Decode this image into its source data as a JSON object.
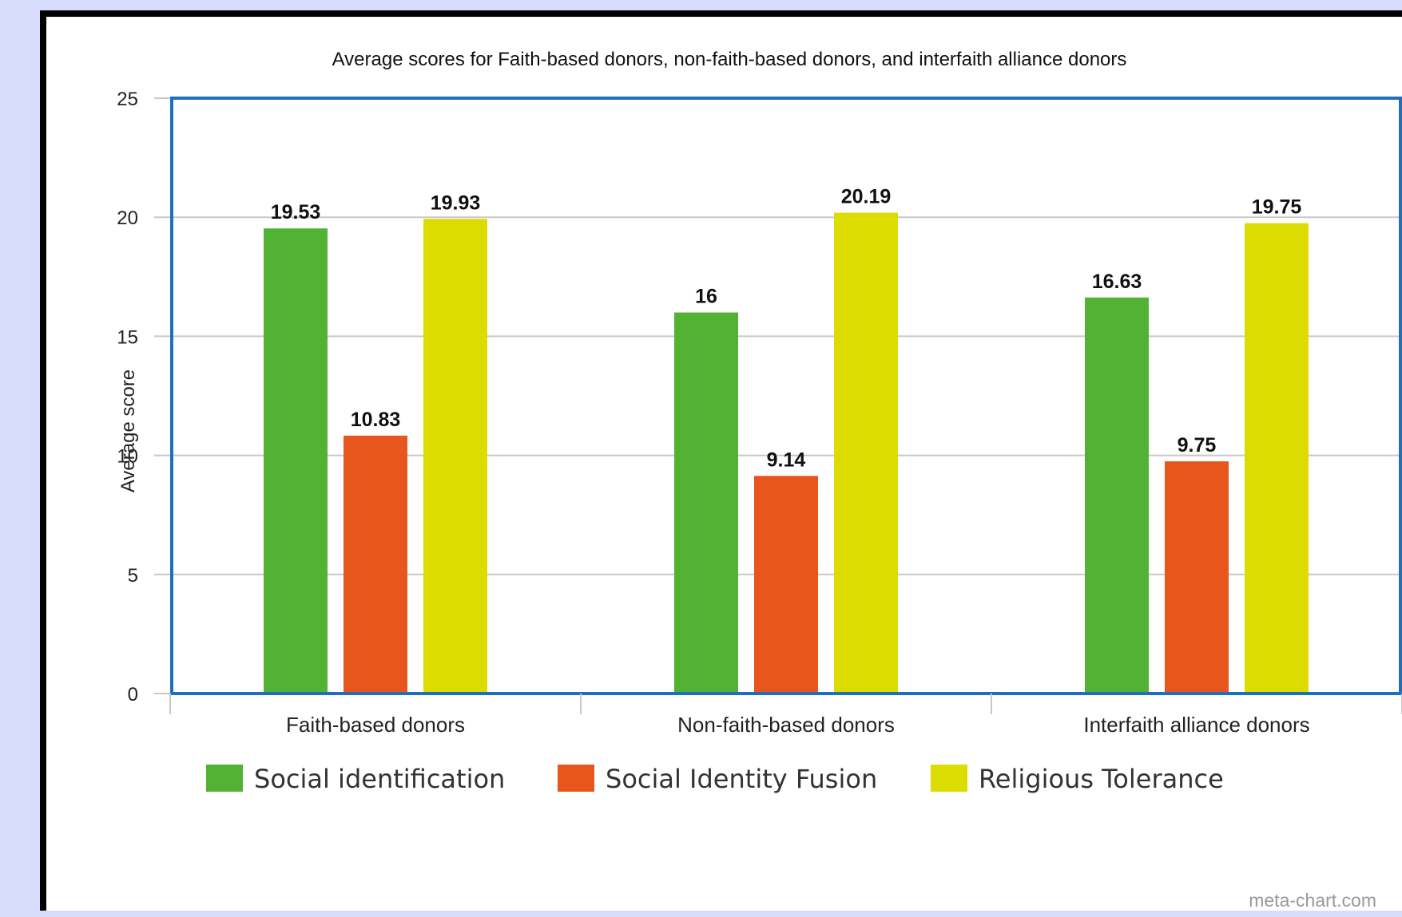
{
  "colors": {
    "page_background": "#d7dcfc",
    "chart_background": "#ffffff",
    "plot_border": "#1f6fbf",
    "gridline": "#c8c8c8",
    "axis_text": "#222222"
  },
  "watermark": "meta-chart.com",
  "chart_data": {
    "type": "bar",
    "title": "Average scores for Faith-based donors, non-faith-based donors, and interfaith alliance donors",
    "xlabel": "",
    "ylabel": "Average score",
    "ylim": [
      0,
      25
    ],
    "yticks": [
      0,
      5,
      10,
      15,
      20,
      25
    ],
    "grid": true,
    "legend_position": "bottom",
    "categories": [
      "Faith-based donors",
      "Non-faith-based donors",
      "Interfaith alliance donors"
    ],
    "series": [
      {
        "name": "Social identification",
        "color": "#52b234",
        "values": [
          19.53,
          16,
          16.63
        ]
      },
      {
        "name": "Social Identity Fusion",
        "color": "#e8561e",
        "values": [
          10.83,
          9.14,
          9.75
        ]
      },
      {
        "name": "Religious Tolerance",
        "color": "#dcdc00",
        "values": [
          19.93,
          20.19,
          19.75
        ]
      }
    ]
  }
}
